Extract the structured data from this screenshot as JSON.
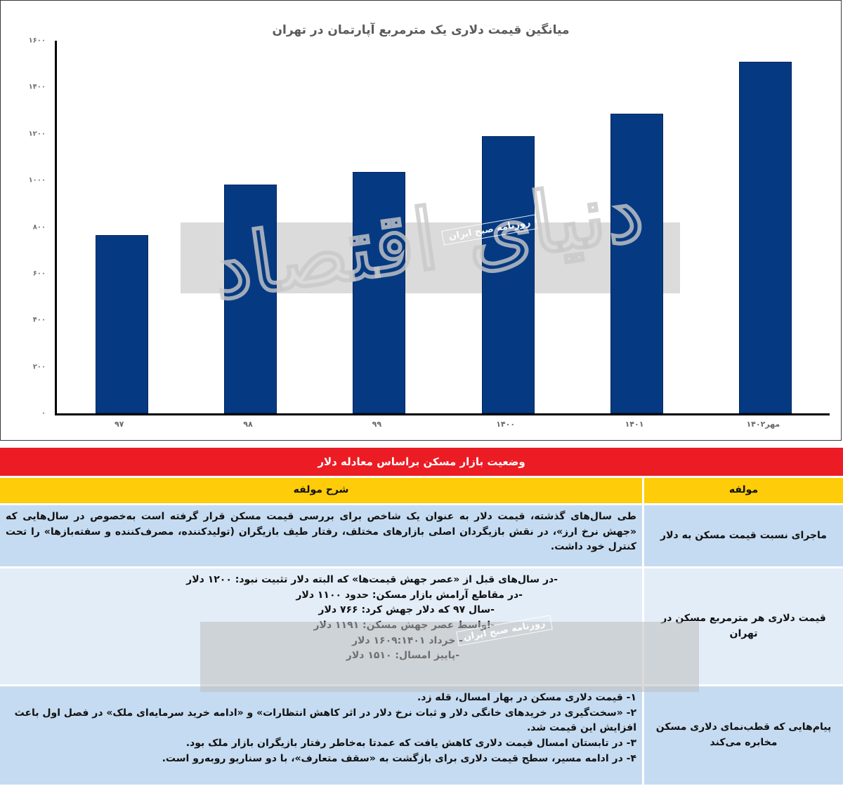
{
  "chart_data": {
    "type": "bar",
    "title": "میانگین قیمت دلاری یک مترمربع آپارتمان در تهران",
    "xlabel": "",
    "ylabel": "",
    "categories": [
      "۹۷",
      "۹۸",
      "۹۹",
      "۱۴۰۰",
      "۱۴۰۱",
      "مهر۱۴۰۲"
    ],
    "values": [
      766,
      982,
      1036,
      1191,
      1286,
      1510
    ],
    "ylim": [
      0,
      1600
    ],
    "yticks": [
      "۰",
      "۲۰۰",
      "۴۰۰",
      "۶۰۰",
      "۸۰۰",
      "۱۰۰۰",
      "۱۲۰۰",
      "۱۴۰۰",
      "۱۶۰۰"
    ],
    "ytick_values": [
      0,
      200,
      400,
      600,
      800,
      1000,
      1200,
      1400,
      1600
    ],
    "grid": false,
    "legend": null,
    "bar_color": "#053a82"
  },
  "watermark": {
    "brand_script": "دنیای اقتصاد",
    "tag": "روزنامه صبح ایران"
  },
  "table": {
    "banner": "وضعیت بازار مسکن براساس معادله دلار",
    "headers": {
      "key": "مولفه",
      "value": "شرح مولفه"
    },
    "rows": [
      {
        "key": "ماجرای نسبت قیمت مسکن به دلار",
        "lines": [
          "طی سال‌های گذشته، قیمت دلار به عنوان یک شاخص برای بررسی قیمت مسکن قرار گرفته است به‌خصوص در سال‌هایی که «جهش نرخ ارز»، در نقش بازیگردان اصلی بازارهای مختلف، رفتار طیف بازیگران (تولیدکننده، مصرف‌کننده و سفته‌بازها» را تحت کنترل خود داشت."
        ]
      },
      {
        "key": "قیمت دلاری هر مترمربع مسکن در تهران",
        "lines": [
          "-در سال‌های قبل از «عصر جهش قیمت‌ها» که البته دلار تثبیت نبود: ۱۲۰۰ دلار",
          "-در مقاطع آرامش بازار مسکن: حدود ۱۱۰۰ دلار",
          "-سال ۹۷ که دلار جهش کرد: ۷۶۶ دلار",
          "-اواسط عصر جهش مسکن: ۱۱۹۱ دلار",
          "- خرداد ۱۶۰۹:۱۴۰۱ دلار",
          "-پاییز امسال: ۱۵۱۰ دلار"
        ]
      },
      {
        "key": "پیام‌هایی که قطب‌نمای دلاری مسکن مخابره می‌کند",
        "lines": [
          "۱- قیمت دلاری مسکن در بهار امسال، قله زد.",
          "۲- «سخت‌گیری در خریدهای خانگی دلار و ثبات نرخ دلار در اثر کاهش انتظارات» و «ادامه خرید سرمایه‌ای ملک» در فصل اول باعث افزایش این قیمت شد.",
          "۳- در تابستان امسال قیمت دلاری کاهش یافت که عمدتا به‌خاطر رفتار بازیگران بازار ملک بود.",
          "۴- در ادامه مسیر، سطح قیمت دلاری برای بازگشت به «سقف متعارف»، با دو سناریو روبه‌رو است."
        ]
      }
    ]
  },
  "colors": {
    "banner": "#ec1c24",
    "header": "#fecc09",
    "row_blue": "#c5dbf1",
    "row_pale": "#e3edf8"
  }
}
